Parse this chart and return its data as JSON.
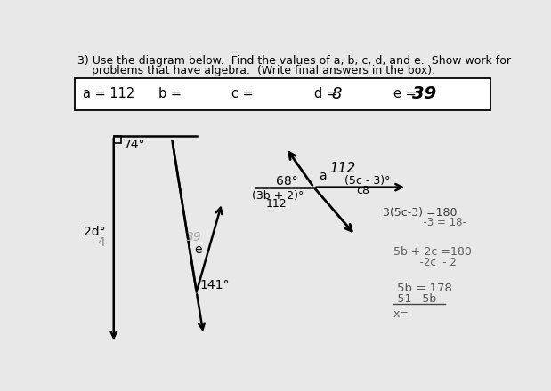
{
  "background_color": "#e8e8e8",
  "title_line1": "3) Use the diagram below.  Find the values of a, b, c, d, and e.  Show work for",
  "title_line2": "    problems that have algebra.  (Write final answers in the box).",
  "answer_box": {
    "a_label": "a = 112",
    "b_label": "b =",
    "c_label": "c =",
    "d_label": "d = 8",
    "e_label": "e = 39"
  },
  "diagram_left": {
    "angle_74": "74°",
    "angle_2d": "2d°",
    "angle_2d_sub": "4",
    "angle_39": "39",
    "angle_e": "e",
    "angle_141": "141°"
  },
  "diagram_right": {
    "angle_68": "68°",
    "angle_a": "a",
    "angle_112": "112",
    "angle_5c3": "(5c - 3)°",
    "angle_c8": "c8",
    "angle_3b2": "(3b + 2)°",
    "angle_3b2_sub": "112"
  },
  "work": {
    "w1": "3(5c-3) =180",
    "w2": "          -3 = 18-",
    "w3": "5b + 2c =180",
    "w4": "      -2c  - 2",
    "w5": "5b = 178",
    "w6": "-51   5b",
    "w7": "x="
  }
}
